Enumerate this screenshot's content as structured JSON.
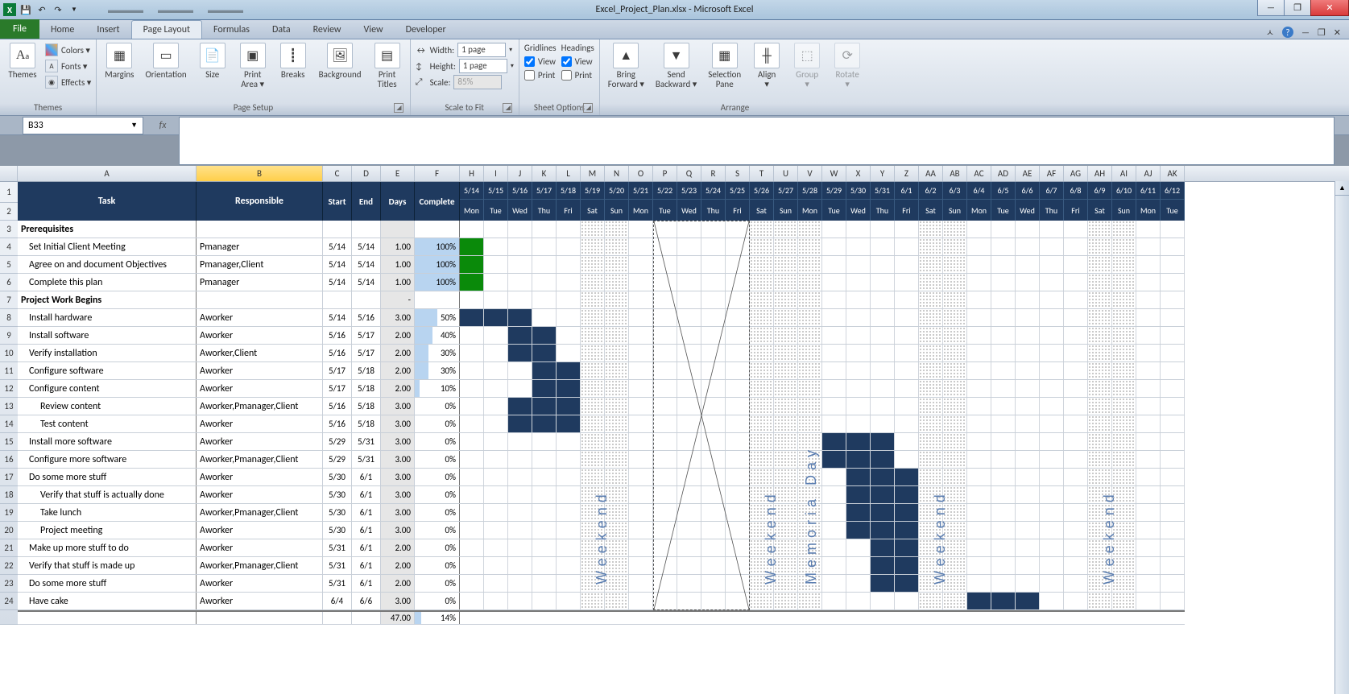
{
  "window": {
    "title": "Excel_Project_Plan.xlsx - Microsoft Excel",
    "qat": [
      "X",
      "💾",
      "↶",
      "↷"
    ]
  },
  "ribbon": {
    "tabs": [
      "File",
      "Home",
      "Insert",
      "Page Layout",
      "Formulas",
      "Data",
      "Review",
      "View",
      "Developer"
    ],
    "active_tab": "Page Layout",
    "themes": {
      "label": "Themes",
      "colors": "Colors ▾",
      "fonts": "Fonts ▾",
      "effects": "Effects ▾",
      "btn": "Themes"
    },
    "page_setup": {
      "label": "Page Setup",
      "margins": "Margins",
      "orientation": "Orientation",
      "size": "Size",
      "print_area": "Print\nArea ▾",
      "breaks": "Breaks",
      "background": "Background",
      "print_titles": "Print\nTitles"
    },
    "scale": {
      "label": "Scale to Fit",
      "width": "Width:",
      "width_v": "1 page",
      "height": "Height:",
      "height_v": "1 page",
      "scale": "Scale:",
      "scale_v": "85%"
    },
    "sheet_opts": {
      "label": "Sheet Options",
      "gridlines": "Gridlines",
      "headings": "Headings",
      "view": "View",
      "print": "Print"
    },
    "arrange": {
      "label": "Arrange",
      "bring": "Bring\nForward ▾",
      "send": "Send\nBackward ▾",
      "selpane": "Selection\nPane",
      "align": "Align\n▾",
      "group": "Group\n▾",
      "rotate": "Rotate\n▾"
    }
  },
  "formula_bar": {
    "cell": "B33",
    "fx": "fx"
  },
  "columns_fixed": {
    "A": 222,
    "B": 157,
    "C": 36,
    "D": 36,
    "E": 42,
    "F": 56
  },
  "col_letters": [
    "H",
    "I",
    "J",
    "K",
    "L",
    "M",
    "N",
    "O",
    "P",
    "Q",
    "R",
    "S",
    "T",
    "U",
    "V",
    "W",
    "X",
    "Y",
    "Z",
    "AA",
    "AB",
    "AC",
    "AD",
    "AE",
    "AF",
    "AG",
    "AH",
    "AI",
    "AJ",
    "AK"
  ],
  "gantt_dates": [
    "5/14",
    "5/15",
    "5/16",
    "5/17",
    "5/18",
    "5/19",
    "5/20",
    "5/21",
    "5/22",
    "5/23",
    "5/24",
    "5/25",
    "5/26",
    "5/27",
    "5/28",
    "5/29",
    "5/30",
    "5/31",
    "6/1",
    "6/2",
    "6/3",
    "6/4",
    "6/5",
    "6/6",
    "6/7",
    "6/8",
    "6/9",
    "6/10",
    "6/11",
    "6/12"
  ],
  "gantt_dows": [
    "Mon",
    "Tue",
    "Wed",
    "Thu",
    "Fri",
    "Sat",
    "Sun",
    "Mon",
    "Tue",
    "Wed",
    "Thu",
    "Fri",
    "Sat",
    "Sun",
    "Mon",
    "Tue",
    "Wed",
    "Thu",
    "Fri",
    "Sat",
    "Sun",
    "Mon",
    "Tue",
    "Wed",
    "Thu",
    "Fri",
    "Sat",
    "Sun",
    "Mon",
    "Tue"
  ],
  "weekend_cols": [
    5,
    6,
    12,
    13,
    19,
    20,
    26,
    27
  ],
  "holiday_cols": [
    14
  ],
  "weekend_labels": [
    {
      "col": 5,
      "text": "Weekend"
    },
    {
      "col": 12,
      "text": "Weekend"
    },
    {
      "col": 14,
      "text": "Memoria Day"
    },
    {
      "col": 19,
      "text": "Weekend"
    },
    {
      "col": 26,
      "text": "Weekend"
    }
  ],
  "headers": {
    "task": "Task",
    "resp": "Responsible",
    "start": "Start",
    "end": "End",
    "days": "Days",
    "complete": "Complete"
  },
  "rows": [
    {
      "n": 3,
      "section": true,
      "task": "Prerequisites"
    },
    {
      "n": 4,
      "task": "Set Initial Client Meeting",
      "resp": "Pmanager",
      "start": "5/14",
      "end": "5/14",
      "days": "1.00",
      "pct": 100,
      "bars": [
        {
          "c": 0,
          "done": true
        }
      ]
    },
    {
      "n": 5,
      "task": "Agree on and document Objectives",
      "resp": "Pmanager,Client",
      "start": "5/14",
      "end": "5/14",
      "days": "1.00",
      "pct": 100,
      "bars": [
        {
          "c": 0,
          "done": true
        }
      ]
    },
    {
      "n": 6,
      "task": "Complete this plan",
      "resp": "Pmanager",
      "start": "5/14",
      "end": "5/14",
      "days": "1.00",
      "pct": 100,
      "bars": [
        {
          "c": 0,
          "done": true
        }
      ]
    },
    {
      "n": 7,
      "section": true,
      "task": "Project Work Begins",
      "days": "-"
    },
    {
      "n": 8,
      "task": "Install hardware",
      "resp": "Aworker",
      "start": "5/14",
      "end": "5/16",
      "days": "3.00",
      "pct": 50,
      "bars": [
        {
          "c": 0
        },
        {
          "c": 1
        },
        {
          "c": 2
        }
      ]
    },
    {
      "n": 9,
      "task": "Install software",
      "resp": "Aworker",
      "start": "5/16",
      "end": "5/17",
      "days": "2.00",
      "pct": 40,
      "bars": [
        {
          "c": 2
        },
        {
          "c": 3
        }
      ]
    },
    {
      "n": 10,
      "task": "Verify installation",
      "resp": "Aworker,Client",
      "start": "5/16",
      "end": "5/17",
      "days": "2.00",
      "pct": 30,
      "bars": [
        {
          "c": 2
        },
        {
          "c": 3
        }
      ]
    },
    {
      "n": 11,
      "task": "Configure software",
      "resp": "Aworker",
      "start": "5/17",
      "end": "5/18",
      "days": "2.00",
      "pct": 30,
      "bars": [
        {
          "c": 3
        },
        {
          "c": 4
        }
      ]
    },
    {
      "n": 12,
      "task": "Configure content",
      "resp": "Aworker",
      "start": "5/17",
      "end": "5/18",
      "days": "2.00",
      "pct": 10,
      "bars": [
        {
          "c": 3
        },
        {
          "c": 4
        }
      ]
    },
    {
      "n": 13,
      "task": "Review content",
      "indent": 1,
      "resp": "Aworker,Pmanager,Client",
      "start": "5/16",
      "end": "5/18",
      "days": "3.00",
      "pct": 0,
      "bars": [
        {
          "c": 2
        },
        {
          "c": 3
        },
        {
          "c": 4
        }
      ]
    },
    {
      "n": 14,
      "task": "Test content",
      "indent": 1,
      "resp": "Aworker",
      "start": "5/16",
      "end": "5/18",
      "days": "3.00",
      "pct": 0,
      "bars": [
        {
          "c": 2
        },
        {
          "c": 3
        },
        {
          "c": 4
        }
      ]
    },
    {
      "n": 15,
      "task": "Install more software",
      "resp": "Aworker",
      "start": "5/29",
      "end": "5/31",
      "days": "3.00",
      "pct": 0,
      "bars": [
        {
          "c": 15
        },
        {
          "c": 16
        },
        {
          "c": 17
        }
      ]
    },
    {
      "n": 16,
      "task": "Configure more software",
      "resp": "Aworker,Pmanager,Client",
      "start": "5/29",
      "end": "5/31",
      "days": "3.00",
      "pct": 0,
      "bars": [
        {
          "c": 15
        },
        {
          "c": 16
        },
        {
          "c": 17
        }
      ]
    },
    {
      "n": 17,
      "task": "Do some more stuff",
      "resp": "Aworker",
      "start": "5/30",
      "end": "6/1",
      "days": "3.00",
      "pct": 0,
      "bars": [
        {
          "c": 16
        },
        {
          "c": 17
        },
        {
          "c": 18
        }
      ]
    },
    {
      "n": 18,
      "task": "Verify that stuff is actually done",
      "indent": 1,
      "resp": "Aworker",
      "start": "5/30",
      "end": "6/1",
      "days": "3.00",
      "pct": 0,
      "bars": [
        {
          "c": 16
        },
        {
          "c": 17
        },
        {
          "c": 18
        }
      ]
    },
    {
      "n": 19,
      "task": "Take lunch",
      "indent": 1,
      "resp": "Aworker,Pmanager,Client",
      "start": "5/30",
      "end": "6/1",
      "days": "3.00",
      "pct": 0,
      "bars": [
        {
          "c": 16
        },
        {
          "c": 17
        },
        {
          "c": 18
        }
      ]
    },
    {
      "n": 20,
      "task": "Project meeting",
      "indent": 1,
      "resp": "Aworker",
      "start": "5/30",
      "end": "6/1",
      "days": "3.00",
      "pct": 0,
      "bars": [
        {
          "c": 16
        },
        {
          "c": 17
        },
        {
          "c": 18
        }
      ]
    },
    {
      "n": 21,
      "task": "Make up more stuff to do",
      "resp": "Aworker",
      "start": "5/31",
      "end": "6/1",
      "days": "2.00",
      "pct": 0,
      "bars": [
        {
          "c": 17
        },
        {
          "c": 18
        }
      ]
    },
    {
      "n": 22,
      "task": "Verify that stuff is made up",
      "resp": "Aworker,Pmanager,Client",
      "start": "5/31",
      "end": "6/1",
      "days": "2.00",
      "pct": 0,
      "bars": [
        {
          "c": 17
        },
        {
          "c": 18
        }
      ]
    },
    {
      "n": 23,
      "task": "Do some more stuff",
      "resp": "Aworker",
      "start": "5/31",
      "end": "6/1",
      "days": "2.00",
      "pct": 0,
      "bars": [
        {
          "c": 17
        },
        {
          "c": 18
        }
      ]
    },
    {
      "n": 24,
      "task": "Have cake",
      "resp": "Aworker",
      "start": "6/4",
      "end": "6/6",
      "days": "3.00",
      "pct": 0,
      "bars": [
        {
          "c": 21
        },
        {
          "c": 22
        },
        {
          "c": 23
        }
      ]
    }
  ],
  "footer_row": {
    "days": "47.00",
    "pct": "14%"
  },
  "colors": {
    "header_bg": "#1f3a5f",
    "done": "#0a8a0a",
    "bar": "#1f3a5f",
    "pctbar": "#b8d4f0"
  }
}
